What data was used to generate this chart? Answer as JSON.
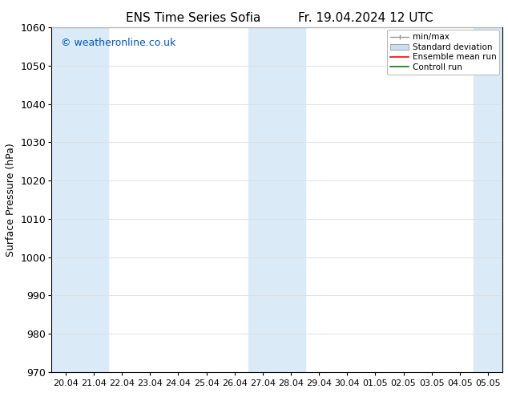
{
  "title_left": "ENS Time Series Sofia",
  "title_right": "Fr. 19.04.2024 12 UTC",
  "ylabel": "Surface Pressure (hPa)",
  "ylim": [
    970,
    1060
  ],
  "yticks": [
    970,
    980,
    990,
    1000,
    1010,
    1020,
    1030,
    1040,
    1050,
    1060
  ],
  "xtick_labels": [
    "20.04",
    "21.04",
    "22.04",
    "23.04",
    "24.04",
    "25.04",
    "26.04",
    "27.04",
    "28.04",
    "29.04",
    "30.04",
    "01.05",
    "02.05",
    "03.05",
    "04.05",
    "05.05"
  ],
  "watermark": "© weatheronline.co.uk",
  "watermark_color": "#0055cc",
  "bg_color": "#ffffff",
  "plot_bg_color": "#ffffff",
  "shaded_band_indices": [
    0,
    1,
    7,
    8,
    15
  ],
  "shaded_color": "#daeaf7",
  "legend_labels": [
    "min/max",
    "Standard deviation",
    "Ensemble mean run",
    "Controll run"
  ],
  "minmax_color": "#999999",
  "stddev_color": "#c8dff0",
  "ensemble_color": "#ff0000",
  "control_color": "#008000",
  "tick_color": "#000000",
  "axis_color": "#000000",
  "font_size": 9,
  "title_font_size": 11,
  "grid_color": "#dddddd"
}
